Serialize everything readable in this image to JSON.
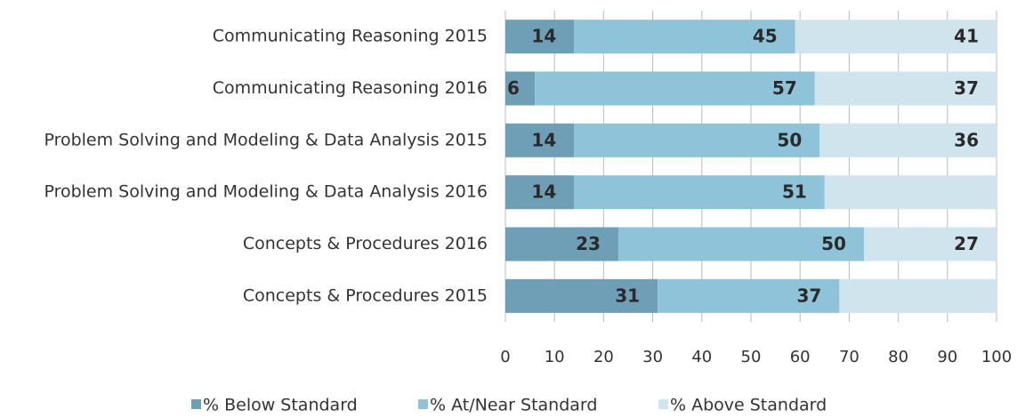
{
  "chart_data": {
    "type": "stacked_barh",
    "categories": [
      "Communicating Reasoning 2015",
      "Communicating Reasoning 2016",
      "Problem Solving and Modeling & Data Analysis 2015",
      "Problem Solving and Modeling & Data Analysis 2016",
      "Concepts & Procedures 2016",
      "Concepts & Procedures 2015"
    ],
    "series": [
      {
        "name": "% Below Standard",
        "color": "#6f9fb6",
        "values": [
          14,
          6,
          14,
          14,
          23,
          31
        ]
      },
      {
        "name": "% At/Near Standard",
        "color": "#8ec3d9",
        "values": [
          45,
          57,
          50,
          51,
          50,
          37
        ]
      },
      {
        "name": "% Above Standard",
        "color": "#cfe4ed",
        "values": [
          41,
          37,
          36,
          35,
          27,
          32
        ],
        "value_labels": [
          "41",
          "37",
          "36",
          null,
          "27",
          null
        ]
      }
    ],
    "xlim": [
      0,
      100
    ],
    "xticks": [
      0,
      10,
      20,
      30,
      40,
      50,
      60,
      70,
      80,
      90,
      100
    ],
    "grid": true,
    "legend": "bottom"
  }
}
